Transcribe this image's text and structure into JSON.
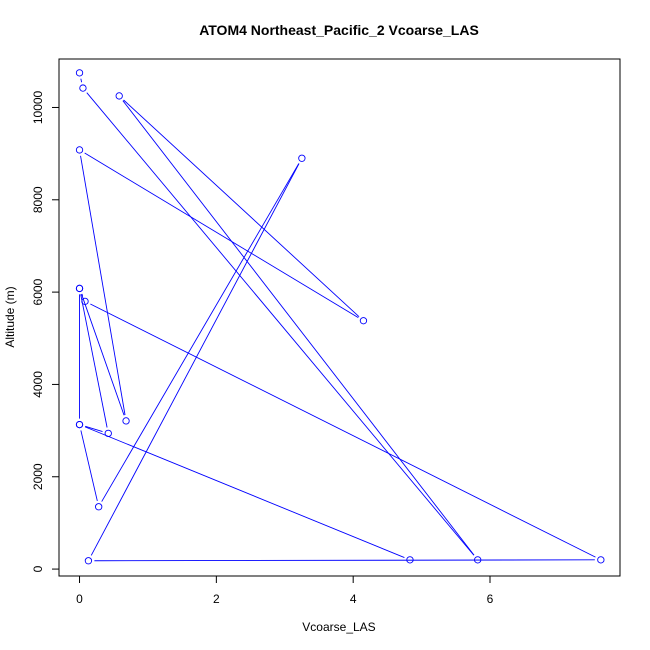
{
  "chart_data": {
    "type": "line",
    "title": "ATOM4 Northeast_Pacific_2 Vcoarse_LAS",
    "xlabel": "Vcoarse_LAS",
    "ylabel": "Altitude (m)",
    "xlim": [
      -0.3,
      7.9
    ],
    "ylim": [
      -150,
      11050
    ],
    "xticks": [
      0,
      2,
      4,
      6
    ],
    "yticks": [
      0,
      2000,
      4000,
      6000,
      8000,
      10000
    ],
    "grid": false,
    "series_color": "#0000ff",
    "points": [
      {
        "x": 0.0,
        "y": 10750
      },
      {
        "x": 0.05,
        "y": 10420
      },
      {
        "x": 5.82,
        "y": 200
      },
      {
        "x": 0.58,
        "y": 10250
      },
      {
        "x": 4.15,
        "y": 5380
      },
      {
        "x": 0.0,
        "y": 9080
      },
      {
        "x": 0.68,
        "y": 3210
      },
      {
        "x": 0.0,
        "y": 6080
      },
      {
        "x": 0.42,
        "y": 2940
      },
      {
        "x": 0.0,
        "y": 3130
      },
      {
        "x": 0.0,
        "y": 6080
      },
      {
        "x": 0.08,
        "y": 5800
      },
      {
        "x": 7.62,
        "y": 200
      },
      {
        "x": 0.13,
        "y": 180
      },
      {
        "x": 3.25,
        "y": 8900
      },
      {
        "x": 0.28,
        "y": 1350
      },
      {
        "x": 0.0,
        "y": 3130
      },
      {
        "x": 4.83,
        "y": 200
      }
    ]
  }
}
